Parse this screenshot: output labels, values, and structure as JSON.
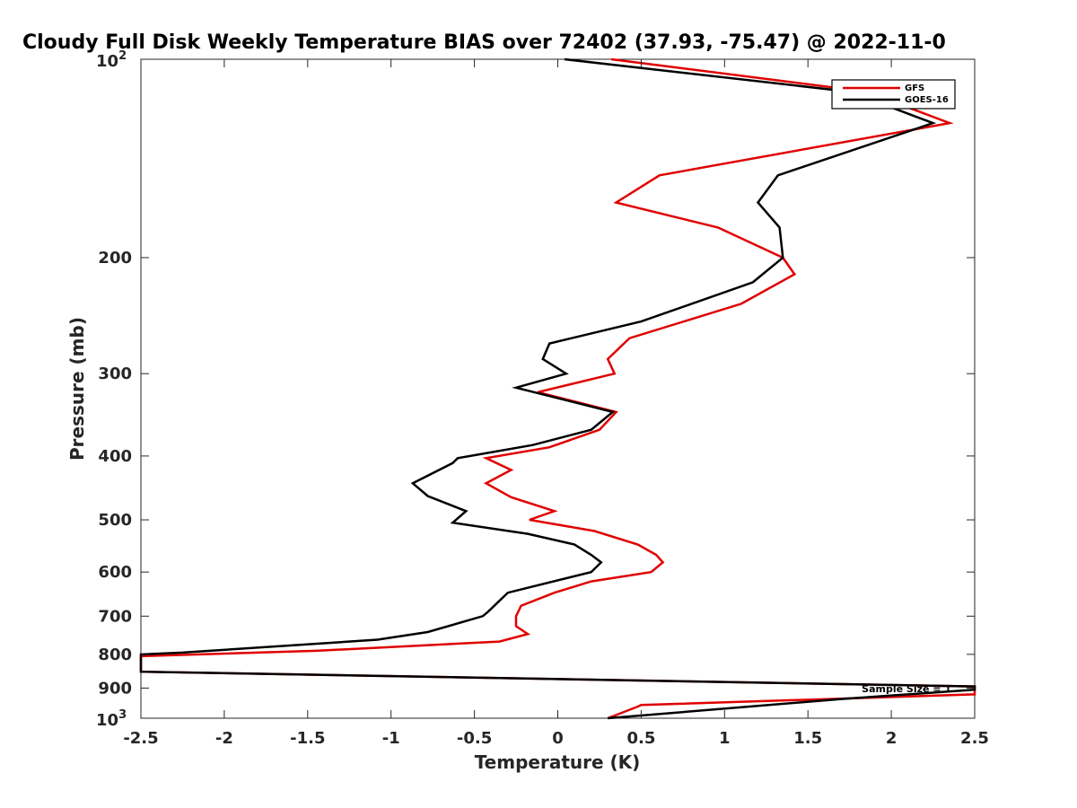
{
  "chart_data": {
    "type": "line",
    "title": "Cloudy Full Disk Weekly Temperature BIAS over 72402 (37.93, -75.47) @ 2022-11-0",
    "xlabel": "Temperature (K)",
    "ylabel": "Pressure (mb)",
    "xlim": [
      -2.5,
      2.5
    ],
    "ylim": [
      100,
      1000
    ],
    "y_scale": "log",
    "y_reversed": true,
    "x_ticks": [
      "-2.5",
      "-2",
      "-1.5",
      "-1",
      "-0.5",
      "0",
      "0.5",
      "1",
      "1.5",
      "2",
      "2.5"
    ],
    "x_tick_values": [
      -2.5,
      -2,
      -1.5,
      -1,
      -0.5,
      0,
      0.5,
      1,
      1.5,
      2,
      2.5
    ],
    "y_ticks": [
      {
        "value": 100,
        "base": "10",
        "exp": "2"
      },
      {
        "value": 200,
        "label": "200"
      },
      {
        "value": 300,
        "label": "300"
      },
      {
        "value": 400,
        "label": "400"
      },
      {
        "value": 500,
        "label": "500"
      },
      {
        "value": 600,
        "label": "600"
      },
      {
        "value": 700,
        "label": "700"
      },
      {
        "value": 800,
        "label": "800"
      },
      {
        "value": 900,
        "label": "900"
      },
      {
        "value": 1000,
        "base": "10",
        "exp": "3"
      }
    ],
    "legend_position": "top-right",
    "annotation": "Sample Size = 1",
    "grid": false,
    "series": [
      {
        "name": "GFS",
        "color": "#e00000",
        "points": [
          [
            0.32,
            100
          ],
          [
            1.85,
            112
          ],
          [
            2.35,
            125
          ],
          [
            0.61,
            150
          ],
          [
            0.35,
            165
          ],
          [
            0.96,
            180
          ],
          [
            1.35,
            200
          ],
          [
            1.42,
            212
          ],
          [
            1.1,
            235
          ],
          [
            0.43,
            265
          ],
          [
            0.3,
            285
          ],
          [
            0.34,
            300
          ],
          [
            -0.12,
            320
          ],
          [
            0.35,
            343
          ],
          [
            0.25,
            365
          ],
          [
            -0.05,
            388
          ],
          [
            -0.43,
            403
          ],
          [
            -0.28,
            420
          ],
          [
            -0.43,
            440
          ],
          [
            -0.28,
            462
          ],
          [
            -0.02,
            485
          ],
          [
            -0.17,
            500
          ],
          [
            0.22,
            520
          ],
          [
            0.48,
            545
          ],
          [
            0.59,
            565
          ],
          [
            0.63,
            580
          ],
          [
            0.56,
            600
          ],
          [
            0.2,
            620
          ],
          [
            -0.02,
            645
          ],
          [
            -0.22,
            675
          ],
          [
            -0.25,
            700
          ],
          [
            -0.25,
            725
          ],
          [
            -0.18,
            745
          ],
          [
            -0.35,
            765
          ],
          [
            -1.45,
            790
          ],
          [
            -2.5,
            805
          ],
          [
            -2.5,
            850
          ],
          [
            2.5,
            895
          ],
          [
            2.5,
            920
          ],
          [
            0.5,
            955
          ],
          [
            0.48,
            960
          ],
          [
            0.3,
            1000
          ]
        ]
      },
      {
        "name": "GOES-16",
        "color": "#000000",
        "points": [
          [
            0.04,
            100
          ],
          [
            1.75,
            112
          ],
          [
            2.25,
            125
          ],
          [
            1.32,
            150
          ],
          [
            1.2,
            165
          ],
          [
            1.33,
            180
          ],
          [
            1.35,
            200
          ],
          [
            1.17,
            218
          ],
          [
            0.5,
            250
          ],
          [
            -0.05,
            270
          ],
          [
            -0.09,
            285
          ],
          [
            0.05,
            300
          ],
          [
            -0.25,
            315
          ],
          [
            0.33,
            343
          ],
          [
            0.2,
            365
          ],
          [
            -0.15,
            385
          ],
          [
            -0.6,
            403
          ],
          [
            -0.63,
            410
          ],
          [
            -0.87,
            440
          ],
          [
            -0.78,
            460
          ],
          [
            -0.55,
            485
          ],
          [
            -0.63,
            505
          ],
          [
            -0.18,
            525
          ],
          [
            0.1,
            545
          ],
          [
            0.2,
            565
          ],
          [
            0.26,
            580
          ],
          [
            0.2,
            600
          ],
          [
            -0.3,
            645
          ],
          [
            -0.42,
            690
          ],
          [
            -0.45,
            700
          ],
          [
            -0.78,
            740
          ],
          [
            -1.08,
            760
          ],
          [
            -2.25,
            795
          ],
          [
            -2.5,
            800
          ],
          [
            -2.5,
            850
          ],
          [
            2.5,
            895
          ],
          [
            2.5,
            905
          ],
          [
            1.7,
            935
          ],
          [
            0.3,
            1000
          ]
        ]
      }
    ]
  }
}
